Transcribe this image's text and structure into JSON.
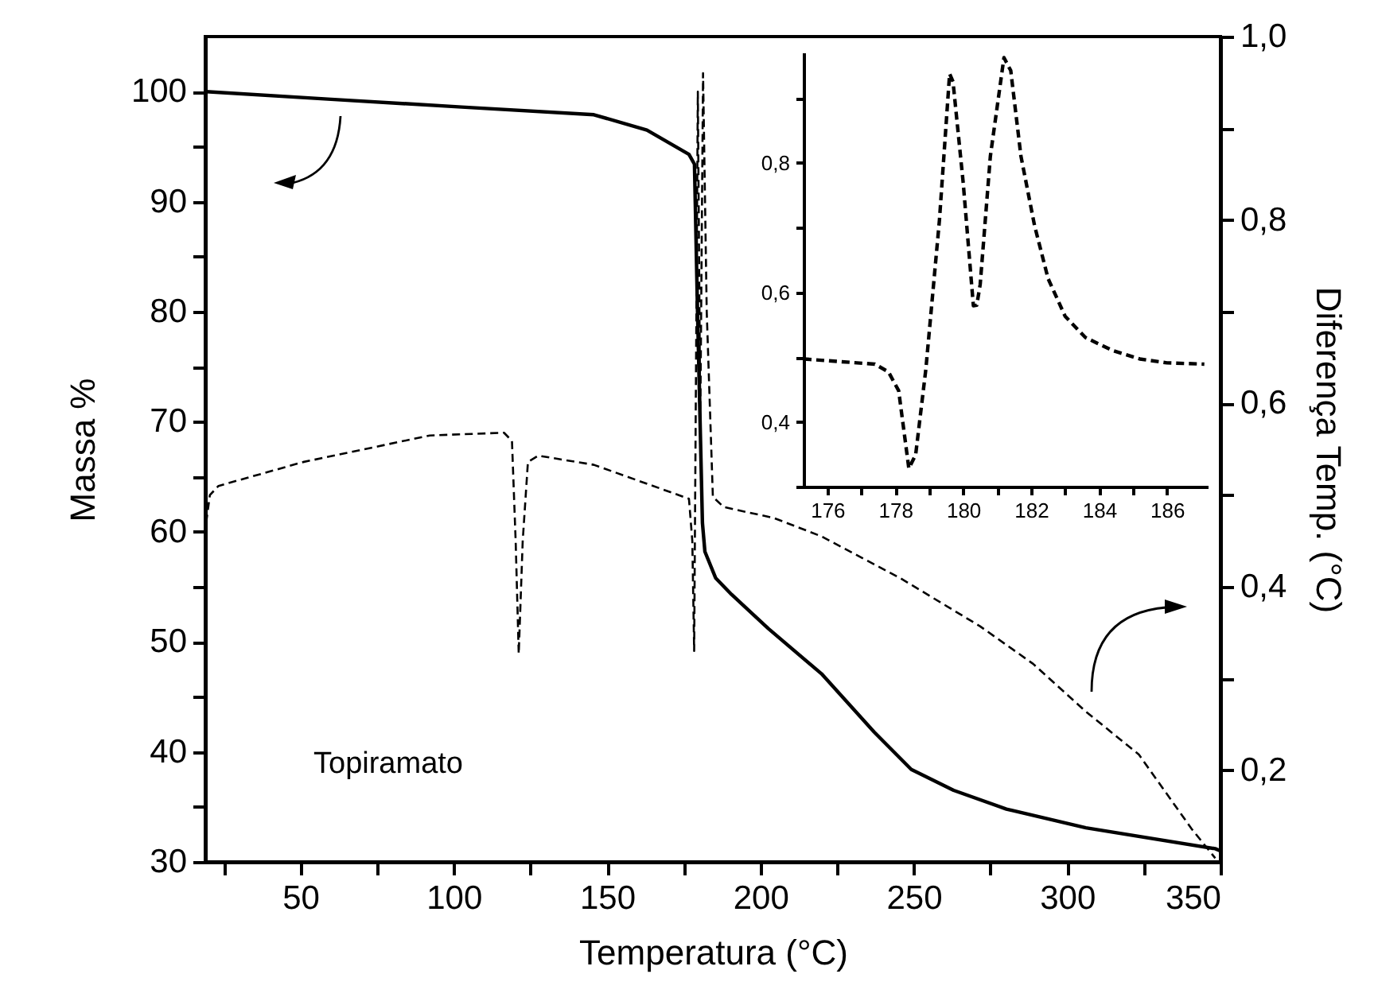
{
  "chart_data": [
    {
      "type": "line",
      "xlabel": "Temperatura (°C)",
      "ylabel": "Massa %",
      "y2label": "Diferença Temp. (°C)",
      "annotations": [
        "Topiramato"
      ],
      "xlim": [
        19,
        350
      ],
      "xticks": [
        {
          "value": 25,
          "label": null
        },
        50,
        {
          "value": 75,
          "label": null
        },
        100,
        {
          "value": 125,
          "label": null
        },
        150,
        {
          "value": 175,
          "label": null
        },
        200,
        {
          "value": 225,
          "label": null
        },
        250,
        {
          "value": 275,
          "label": null
        },
        300,
        {
          "value": 325,
          "label": null
        },
        350
      ],
      "ylim": [
        30,
        105
      ],
      "yticks": [
        30,
        {
          "value": 35,
          "label": null
        },
        40,
        {
          "value": 45,
          "label": null
        },
        50,
        {
          "value": 55,
          "label": null
        },
        60,
        {
          "value": 65,
          "label": null
        },
        70,
        {
          "value": 75,
          "label": null
        },
        80,
        {
          "value": 85,
          "label": null
        },
        90,
        {
          "value": 95,
          "label": null
        },
        100
      ],
      "y2lim": [
        0.1,
        1.0
      ],
      "y2ticks": [
        {
          "value": 0.2,
          "label": "0,2"
        },
        {
          "value": 0.3,
          "label": null
        },
        {
          "value": 0.4,
          "label": "0,4"
        },
        {
          "value": 0.5,
          "label": null
        },
        {
          "value": 0.6,
          "label": "0,6"
        },
        {
          "value": 0.7,
          "label": null
        },
        {
          "value": 0.8,
          "label": "0,8"
        },
        {
          "value": 0.9,
          "label": null
        },
        {
          "value": 1.0,
          "label": "1,0"
        }
      ],
      "marker": "none",
      "series": [
        {
          "color": "#000000",
          "line_style": "solid",
          "x": [
            19.3,
            60,
            102.6,
            145.7,
            163,
            176.7,
            178.5,
            179.5,
            181.1,
            181.9,
            185.4,
            190.6,
            202.6,
            219.9,
            237.1,
            249.2,
            263,
            280.2,
            306.1,
            348.3,
            350
          ],
          "values": [
            100,
            99.3,
            98.6,
            97.9,
            96.5,
            94.3,
            93.4,
            80,
            60.8,
            58.2,
            55.8,
            54.3,
            51.2,
            47.1,
            41.8,
            38.4,
            36.5,
            34.8,
            33.1,
            31.2,
            31
          ]
        },
        {
          "color": "#000000",
          "line_style": "dashed",
          "axis": "y2",
          "x": [
            19.3,
            20.5,
            23.3,
            50.9,
            92.2,
            116.4,
            119,
            120.2,
            121.2,
            122.5,
            124.2,
            127.6,
            145.7,
            176.7,
            177.8,
            178.4,
            179.6,
            180.4,
            181.3,
            182.5,
            184.5,
            188,
            204.4,
            219.9,
            245.8,
            271.6,
            288.9,
            306.1,
            323.4,
            340.6,
            348.3
          ],
          "values": [
            0.47,
            0.5,
            0.51,
            0.536,
            0.565,
            0.568,
            0.559,
            0.45,
            0.327,
            0.45,
            0.536,
            0.543,
            0.533,
            0.496,
            0.45,
            0.33,
            0.94,
            0.58,
            0.96,
            0.7,
            0.498,
            0.487,
            0.475,
            0.455,
            0.409,
            0.357,
            0.316,
            0.264,
            0.217,
            0.136,
            0.104
          ]
        }
      ]
    },
    {
      "type": "line",
      "xlim": [
        175.3,
        187.2
      ],
      "xticks": [
        176,
        {
          "value": 177,
          "label": null
        },
        178,
        {
          "value": 179,
          "label": null
        },
        180,
        {
          "value": 181,
          "label": null
        },
        182,
        {
          "value": 183,
          "label": null
        },
        184,
        {
          "value": 185,
          "label": null
        },
        186
      ],
      "ylim": [
        0.3,
        0.97
      ],
      "yticks": [
        {
          "value": 0.3,
          "label": null
        },
        {
          "value": 0.4,
          "label": "0,4"
        },
        {
          "value": 0.5,
          "label": null
        },
        {
          "value": 0.6,
          "label": "0,6"
        },
        {
          "value": 0.7,
          "label": null
        },
        {
          "value": 0.8,
          "label": "0,8"
        },
        {
          "value": 0.9,
          "label": null
        }
      ],
      "marker": "none",
      "series": [
        {
          "color": "#000000",
          "line_style": "dashed",
          "x": [
            175.3,
            177.4,
            177.8,
            178.1,
            178.4,
            178.6,
            178.9,
            179.3,
            179.6,
            179.7,
            180,
            180.3,
            180.4,
            180.5,
            180.8,
            181.2,
            181.4,
            181.7,
            182.1,
            182.5,
            183,
            183.6,
            184.4,
            185.2,
            186,
            187.1
          ],
          "values": [
            0.497,
            0.489,
            0.477,
            0.448,
            0.328,
            0.349,
            0.481,
            0.711,
            0.937,
            0.925,
            0.769,
            0.579,
            0.58,
            0.612,
            0.81,
            0.962,
            0.942,
            0.81,
            0.703,
            0.621,
            0.563,
            0.53,
            0.51,
            0.497,
            0.491,
            0.489
          ]
        }
      ]
    }
  ]
}
